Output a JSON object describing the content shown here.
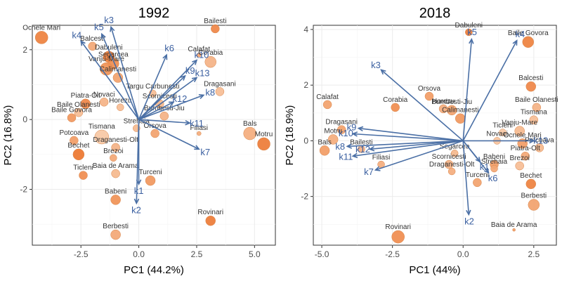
{
  "chart_data": [
    {
      "type": "scatter",
      "title": "1992",
      "xlabel": "PC1 (44.2%)",
      "ylabel": "PC2 (16.8%)",
      "xlim": [
        -4.6,
        5.9
      ],
      "ylim": [
        -3.6,
        2.7
      ],
      "xticks": [
        -2.5,
        0.0,
        2.5,
        5.0
      ],
      "xtick_labels": [
        "-2.5",
        "0.0",
        "2.5",
        "5.0"
      ],
      "yticks": [
        -2,
        0,
        2
      ],
      "ytick_labels": [
        "-2",
        "0",
        "2"
      ],
      "points": [
        {
          "name": "Ocnele Mari",
          "x": -4.2,
          "y": 2.35,
          "size": 9,
          "shade": 0.85
        },
        {
          "name": "Dabuleni",
          "x": -1.3,
          "y": 1.8,
          "size": 8,
          "shade": 0.9
        },
        {
          "name": "Balcesti",
          "x": -2.0,
          "y": 2.1,
          "size": 6,
          "shade": 0.5
        },
        {
          "name": "Segarcea",
          "x": -1.1,
          "y": 1.6,
          "size": 8,
          "shade": 0.75
        },
        {
          "name": "Vanju-Mare",
          "x": -1.4,
          "y": 1.45,
          "size": 9,
          "shade": 0.7
        },
        {
          "name": "Calimanesti",
          "x": -0.9,
          "y": 1.2,
          "size": 7,
          "shade": 0.55
        },
        {
          "name": "Piatra-Olt",
          "x": -2.3,
          "y": 0.45,
          "size": 7,
          "shade": 0.8
        },
        {
          "name": "Novaci",
          "x": -1.5,
          "y": 0.5,
          "size": 6,
          "shade": 0.4
        },
        {
          "name": "Baile Olanesti",
          "x": -2.6,
          "y": 0.2,
          "size": 6,
          "shade": 0.3
        },
        {
          "name": "Horezu",
          "x": -0.8,
          "y": 0.35,
          "size": 5,
          "shade": 0.3
        },
        {
          "name": "Baile Govora",
          "x": -2.9,
          "y": 0.05,
          "size": 6,
          "shade": 0.65
        },
        {
          "name": "Tismana",
          "x": -1.6,
          "y": -0.5,
          "size": 10,
          "shade": 0.2
        },
        {
          "name": "Bechet",
          "x": -2.6,
          "y": -1.0,
          "size": 8,
          "shade": 0.95
        },
        {
          "name": "Potcoava",
          "x": -2.8,
          "y": -0.6,
          "size": 6,
          "shade": 0.6
        },
        {
          "name": "Ticleni",
          "x": -2.4,
          "y": -1.6,
          "size": 6,
          "shade": 0.75
        },
        {
          "name": "Strehaia",
          "x": -0.1,
          "y": -0.25,
          "size": 5,
          "shade": 0.35
        },
        {
          "name": "Draganesti-Olt",
          "x": -1.0,
          "y": -0.8,
          "size": 6,
          "shade": 0.4
        },
        {
          "name": "Brezoi",
          "x": -1.1,
          "y": -1.1,
          "size": 5,
          "shade": 0.5
        },
        {
          "name": "Baia de Arama",
          "x": -1.0,
          "y": -1.55,
          "size": 6,
          "shade": 0.35
        },
        {
          "name": "Turceni",
          "x": 0.5,
          "y": -1.75,
          "size": 7,
          "shade": 0.65
        },
        {
          "name": "Babeni",
          "x": -1.0,
          "y": -2.3,
          "size": 7,
          "shade": 0.7
        },
        {
          "name": "Berbesti",
          "x": -1.0,
          "y": -3.3,
          "size": 7,
          "shade": 0.5
        },
        {
          "name": "Rovinari",
          "x": 3.1,
          "y": -2.9,
          "size": 7,
          "shade": 0.9
        },
        {
          "name": "Targu Carbunesti",
          "x": 0.6,
          "y": 0.75,
          "size": 5,
          "shade": 0.3
        },
        {
          "name": "Scornicesti",
          "x": 0.9,
          "y": 0.45,
          "size": 6,
          "shade": 0.35
        },
        {
          "name": "Bumbesti-Jiu",
          "x": 1.1,
          "y": 0.1,
          "size": 6,
          "shade": 0.4
        },
        {
          "name": "Orsova",
          "x": 0.7,
          "y": -0.4,
          "size": 6,
          "shade": 0.55
        },
        {
          "name": "Filiasi",
          "x": 2.6,
          "y": -0.4,
          "size": 3,
          "shade": 0.45
        },
        {
          "name": "Calafat",
          "x": 2.6,
          "y": 1.85,
          "size": 3,
          "shade": 0.5
        },
        {
          "name": "Bailesti",
          "x": 3.3,
          "y": 2.6,
          "size": 6,
          "shade": 0.8
        },
        {
          "name": "Corabia",
          "x": 3.1,
          "y": 1.65,
          "size": 8,
          "shade": 0.4
        },
        {
          "name": "Dragasani",
          "x": 3.5,
          "y": 0.8,
          "size": 6,
          "shade": 0.3
        },
        {
          "name": "Bals",
          "x": 4.8,
          "y": -0.4,
          "size": 9,
          "shade": 0.45
        },
        {
          "name": "Motru",
          "x": 5.4,
          "y": -0.7,
          "size": 9,
          "shade": 0.9
        }
      ],
      "loadings": [
        {
          "name": "k1",
          "x": 0.0,
          "y": -1.85
        },
        {
          "name": "k2",
          "x": -0.1,
          "y": -2.4
        },
        {
          "name": "k3",
          "x": -1.2,
          "y": 2.65
        },
        {
          "name": "k4",
          "x": -2.5,
          "y": 2.25
        },
        {
          "name": "k5",
          "x": -1.6,
          "y": 2.45
        },
        {
          "name": "k6",
          "x": 1.2,
          "y": 1.85
        },
        {
          "name": "k7",
          "x": 2.6,
          "y": -0.85
        },
        {
          "name": "k8",
          "x": 2.8,
          "y": 0.7
        },
        {
          "name": "k9",
          "x": 2.0,
          "y": 1.25
        },
        {
          "name": "k10",
          "x": 2.5,
          "y": 1.7
        },
        {
          "name": "k11",
          "x": 2.2,
          "y": -0.1
        },
        {
          "name": "k12",
          "x": 1.5,
          "y": 0.5
        },
        {
          "name": "k13",
          "x": 2.5,
          "y": 1.2
        }
      ]
    },
    {
      "type": "scatter",
      "title": "2018",
      "xlabel": "PC1 (44%)",
      "ylabel": "PC2 (18.9%)",
      "xlim": [
        -5.3,
        3.3
      ],
      "ylim": [
        -3.75,
        4.15
      ],
      "xticks": [
        -5.0,
        -2.5,
        0.0,
        2.5
      ],
      "xtick_labels": [
        "-5.0",
        "-2.5",
        "0.0",
        "2.5"
      ],
      "yticks": [
        -2,
        0,
        2,
        4
      ],
      "ytick_labels": [
        "-2",
        "0",
        "2",
        "4"
      ],
      "points": [
        {
          "name": "Dabuleni",
          "x": 0.2,
          "y": 3.9,
          "size": 5,
          "shade": 0.9
        },
        {
          "name": "Baile Govora",
          "x": 2.3,
          "y": 3.55,
          "size": 8,
          "shade": 0.85
        },
        {
          "name": "Balcesti",
          "x": 2.4,
          "y": 1.95,
          "size": 7,
          "shade": 0.8
        },
        {
          "name": "Baile Olanesti",
          "x": 2.6,
          "y": 1.2,
          "size": 6,
          "shade": 0.4
        },
        {
          "name": "Orsova",
          "x": -1.2,
          "y": 1.6,
          "size": 6,
          "shade": 0.6
        },
        {
          "name": "Calafat",
          "x": -4.8,
          "y": 1.3,
          "size": 6,
          "shade": 0.55
        },
        {
          "name": "Corabia",
          "x": -2.4,
          "y": 1.2,
          "size": 6,
          "shade": 0.75
        },
        {
          "name": "Horezu",
          "x": -0.7,
          "y": 1.15,
          "size": 6,
          "shade": 0.45
        },
        {
          "name": "Bumbesti-Jiu",
          "x": -0.4,
          "y": 1.1,
          "size": 7,
          "shade": 0.55
        },
        {
          "name": "Calimanesti",
          "x": -0.1,
          "y": 0.8,
          "size": 7,
          "shade": 0.65
        },
        {
          "name": "Dragasani",
          "x": -4.3,
          "y": 0.4,
          "size": 6,
          "shade": 0.55
        },
        {
          "name": "Tismana",
          "x": 2.5,
          "y": 0.75,
          "size": 6,
          "shade": 0.3
        },
        {
          "name": "Ticleni",
          "x": 1.4,
          "y": 0.3,
          "size": 5,
          "shade": 0.2
        },
        {
          "name": "Vanju-Mare",
          "x": 2.0,
          "y": 0.35,
          "size": 7,
          "shade": 0.35
        },
        {
          "name": "Novaci",
          "x": 1.2,
          "y": 0.0,
          "size": 5,
          "shade": 0.25
        },
        {
          "name": "Ocnele Mari",
          "x": 2.1,
          "y": -0.1,
          "size": 7,
          "shade": 0.6
        },
        {
          "name": "Potcoava",
          "x": 2.7,
          "y": -0.25,
          "size": 6,
          "shade": 0.35
        },
        {
          "name": "Piatra-Olt",
          "x": 2.2,
          "y": -0.55,
          "size": 6,
          "shade": 0.5
        },
        {
          "name": "Motru",
          "x": -4.6,
          "y": 0.05,
          "size": 7,
          "shade": 0.45
        },
        {
          "name": "Bals",
          "x": -4.9,
          "y": -0.35,
          "size": 7,
          "shade": 0.6
        },
        {
          "name": "Bailesti",
          "x": -3.6,
          "y": -0.3,
          "size": 5,
          "shade": 0.4
        },
        {
          "name": "Filiasi",
          "x": -2.9,
          "y": -0.85,
          "size": 5,
          "shade": 0.45
        },
        {
          "name": "Scornicesti",
          "x": -0.5,
          "y": -0.85,
          "size": 6,
          "shade": 0.4
        },
        {
          "name": "Segarcea",
          "x": -0.3,
          "y": -0.45,
          "size": 5,
          "shade": 0.35
        },
        {
          "name": "Draganesti-Olt",
          "x": -0.4,
          "y": -1.1,
          "size": 5,
          "shade": 0.45
        },
        {
          "name": "Babeni",
          "x": 1.1,
          "y": -0.85,
          "size": 6,
          "shade": 0.6
        },
        {
          "name": "Turceni",
          "x": 0.5,
          "y": -1.5,
          "size": 6,
          "shade": 0.55
        },
        {
          "name": "Strehaia",
          "x": 1.1,
          "y": -1.0,
          "size": 5,
          "shade": 0.5
        },
        {
          "name": "Brezoi",
          "x": 2.0,
          "y": -0.9,
          "size": 6,
          "shade": 0.3
        },
        {
          "name": "Bechet",
          "x": 2.4,
          "y": -1.55,
          "size": 7,
          "shade": 0.85
        },
        {
          "name": "Berbesti",
          "x": 2.5,
          "y": -2.3,
          "size": 8,
          "shade": 0.55
        },
        {
          "name": "Rovinari",
          "x": -2.3,
          "y": -3.45,
          "size": 9,
          "shade": 0.75
        },
        {
          "name": "Baia de Arama",
          "x": 1.8,
          "y": -3.2,
          "size": 2,
          "shade": 0.6
        }
      ],
      "loadings": [
        {
          "name": "k1",
          "x": 0.6,
          "y": -0.75
        },
        {
          "name": "k2",
          "x": 0.2,
          "y": -2.65
        },
        {
          "name": "k3",
          "x": -2.9,
          "y": 2.55
        },
        {
          "name": "k4",
          "x": 1.9,
          "y": 3.6
        },
        {
          "name": "k5",
          "x": 0.3,
          "y": 3.65
        },
        {
          "name": "k6",
          "x": 0.9,
          "y": -1.15
        },
        {
          "name": "k7",
          "x": -3.1,
          "y": -1.05
        },
        {
          "name": "k8",
          "x": -4.1,
          "y": -0.2
        },
        {
          "name": "k9",
          "x": -3.7,
          "y": 0.45
        },
        {
          "name": "k10",
          "x": -3.9,
          "y": 0.25
        },
        {
          "name": "k11",
          "x": -3.9,
          "y": -0.55
        },
        {
          "name": "k12",
          "x": -3.3,
          "y": -0.3
        },
        {
          "name": "k13",
          "x": 2.5,
          "y": 0.0
        }
      ]
    }
  ]
}
